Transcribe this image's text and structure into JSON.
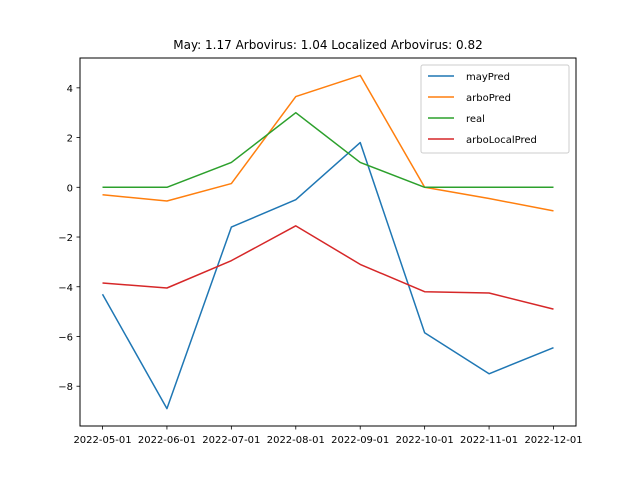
{
  "chart_data": {
    "type": "line",
    "title": "May: 1.17    Arbovirus: 1.04   Localized Arbovirus: 0.82",
    "xlabel": "",
    "ylabel": "",
    "x": [
      "2022-05-01",
      "2022-06-01",
      "2022-07-01",
      "2022-08-01",
      "2022-09-01",
      "2022-10-01",
      "2022-11-01",
      "2022-12-01"
    ],
    "ylim": [
      -9.6,
      5.2
    ],
    "yticks": [
      4,
      2,
      0,
      -2,
      -4,
      -6,
      -8
    ],
    "legend_position": "top-right",
    "grid": false,
    "series": [
      {
        "name": "mayPred",
        "color": "#1f77b4",
        "values": [
          -4.3,
          -8.9,
          -1.6,
          -0.5,
          1.8,
          -5.85,
          -7.5,
          -6.45
        ]
      },
      {
        "name": "arboPred",
        "color": "#ff7f0e",
        "values": [
          -0.3,
          -0.55,
          0.15,
          3.65,
          4.5,
          0.0,
          -0.45,
          -0.95
        ]
      },
      {
        "name": "real",
        "color": "#2ca02c",
        "values": [
          0,
          0,
          1,
          3,
          1,
          0,
          0,
          0
        ]
      },
      {
        "name": "arboLocalPred",
        "color": "#d62728",
        "values": [
          -3.85,
          -4.05,
          -2.95,
          -1.55,
          -3.1,
          -4.2,
          -4.25,
          -4.9
        ]
      }
    ]
  }
}
